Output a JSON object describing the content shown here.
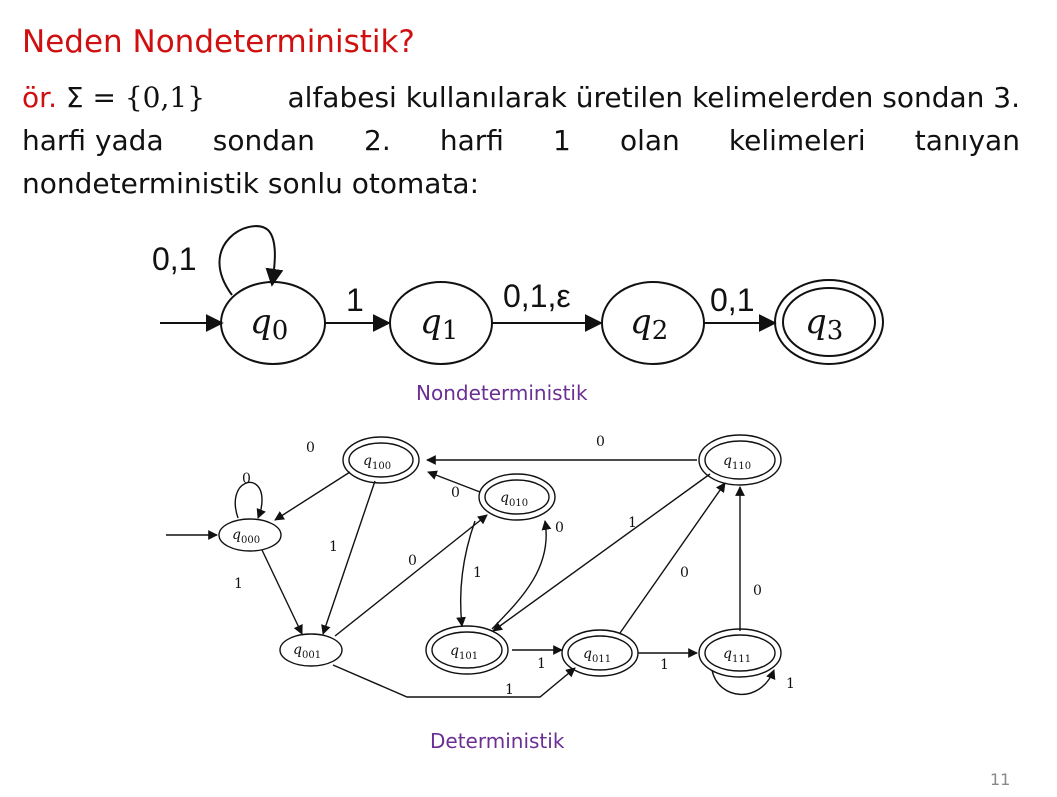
{
  "title": "Neden Nondeterministik?",
  "paragraph": {
    "prefix": "ör.",
    "sigma": "Σ =",
    "set": "{0,1}",
    "line1_rest": "alfabesi kullanılarak üretilen kelimelerden sondan 3.",
    "line2_words": [
      "harfi yada",
      "sondan",
      "2.",
      "harfi",
      "1",
      "olan",
      "kelimeleri",
      "tanıyan"
    ],
    "line3": "nondeterministik sonlu otomata:"
  },
  "nfa": {
    "states": [
      "q0",
      "q1",
      "q2",
      "q3"
    ],
    "self_loop_label": "0,1",
    "edge_labels": [
      "1",
      "0,1,ε",
      "0,1"
    ],
    "caption": "Nondeterministik"
  },
  "dfa": {
    "states": [
      "q000",
      "q100",
      "q010",
      "q110",
      "q001",
      "q101",
      "q011",
      "q111"
    ],
    "edge_labels": [
      "0",
      "0",
      "0",
      "0",
      "1",
      "1",
      "0",
      "1",
      "1",
      "0",
      "0",
      "1",
      "1",
      "1",
      "1",
      "0",
      "1"
    ],
    "caption": "Deterministik"
  },
  "page_number": "11"
}
